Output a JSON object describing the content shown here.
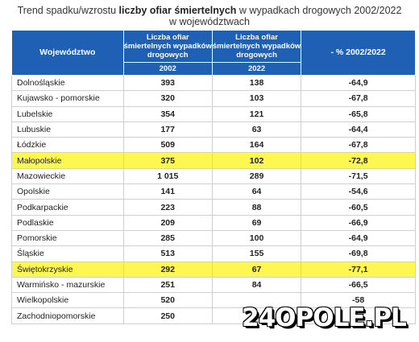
{
  "title": {
    "prefix": "Trend spadku/wzrostu ",
    "bold": "liczby ofiar śmiertelnych",
    "suffix": " w wypadkach drogowych 2002/2022",
    "line2": "w województwach"
  },
  "table": {
    "headers": {
      "region": "Województwo",
      "col2002": "Liczba ofiar śmiertelnych wypadków drogowych",
      "year2002": "2002",
      "col2022": "Liczba ofiar śmiertelnych wypadków drogowych",
      "year2022": "2022",
      "pct": "- % 2002/2022"
    },
    "rows": [
      {
        "name": "Dolnośląskie",
        "v2002": "393",
        "v2022": "138",
        "pct": "-64,9",
        "highlight": false
      },
      {
        "name": "Kujawsko - pomorskie",
        "v2002": "320",
        "v2022": "103",
        "pct": "-67,8",
        "highlight": false
      },
      {
        "name": "Lubelskie",
        "v2002": "354",
        "v2022": "121",
        "pct": "-65,8",
        "highlight": false
      },
      {
        "name": "Lubuskie",
        "v2002": "177",
        "v2022": "63",
        "pct": "-64,4",
        "highlight": false
      },
      {
        "name": "Łódzkie",
        "v2002": "509",
        "v2022": "164",
        "pct": "-67,8",
        "highlight": false
      },
      {
        "name": "Małopolskie",
        "v2002": "375",
        "v2022": "102",
        "pct": "-72,8",
        "highlight": true
      },
      {
        "name": "Mazowieckie",
        "v2002": "1 015",
        "v2022": "289",
        "pct": "-71,5",
        "highlight": false
      },
      {
        "name": "Opolskie",
        "v2002": "141",
        "v2022": "64",
        "pct": "-54,6",
        "highlight": false
      },
      {
        "name": "Podkarpackie",
        "v2002": "223",
        "v2022": "88",
        "pct": "-60,5",
        "highlight": false
      },
      {
        "name": "Podlaskie",
        "v2002": "209",
        "v2022": "69",
        "pct": "-66,9",
        "highlight": false
      },
      {
        "name": "Pomorskie",
        "v2002": "285",
        "v2022": "100",
        "pct": "-64,9",
        "highlight": false
      },
      {
        "name": "Śląskie",
        "v2002": "513",
        "v2022": "155",
        "pct": "-69,8",
        "highlight": false
      },
      {
        "name": "Świętokrzyskie",
        "v2002": "292",
        "v2022": "67",
        "pct": "-77,1",
        "highlight": true
      },
      {
        "name": "Warmińsko - mazurskie",
        "v2002": "251",
        "v2022": "84",
        "pct": "-66,5",
        "highlight": false
      },
      {
        "name": "Wielkopolskie",
        "v2002": "520",
        "v2022": "",
        "pct": "-58",
        "highlight": false
      },
      {
        "name": "Zachodniopomorskie",
        "v2002": "250",
        "v2022": "",
        "pct": "",
        "highlight": false
      }
    ]
  },
  "watermark": "24OPOLE.PL",
  "colors": {
    "header_bg": "#1f5fb4",
    "highlight": "#fef651"
  }
}
